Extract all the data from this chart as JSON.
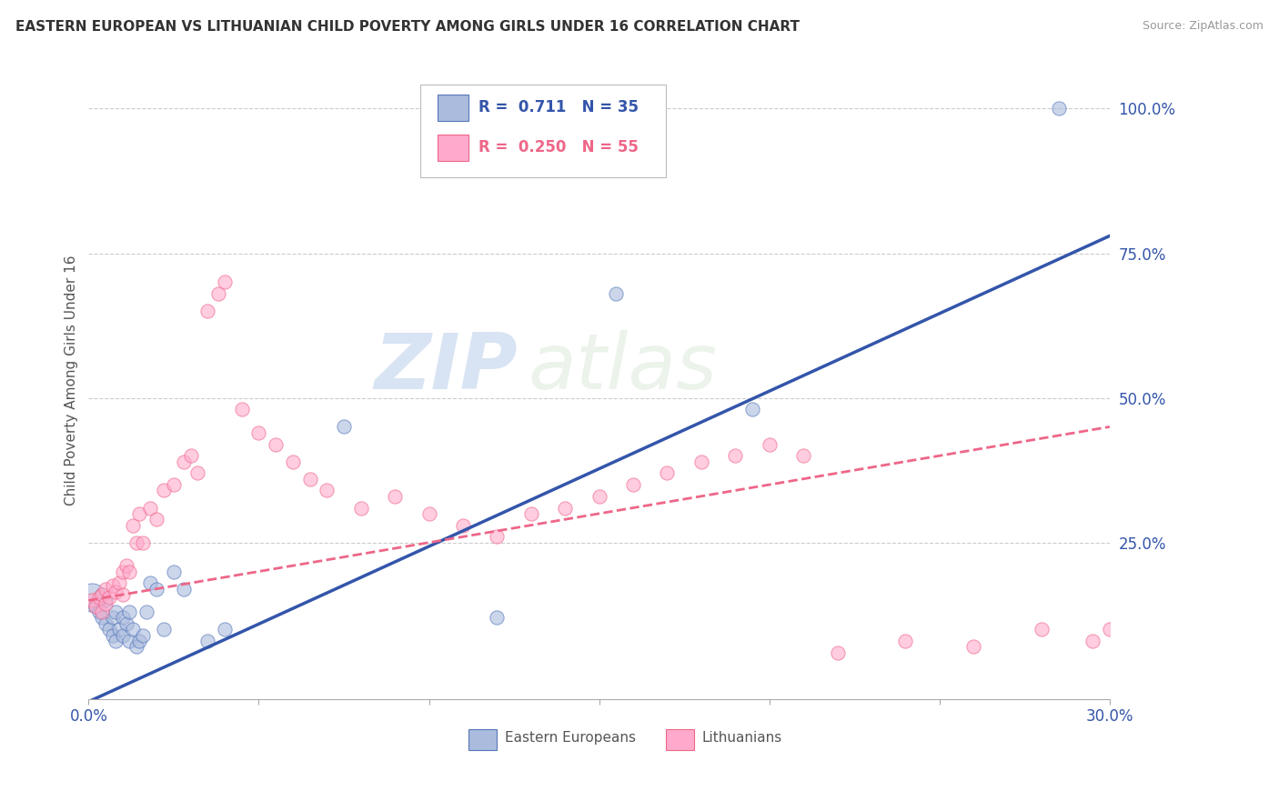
{
  "title": "EASTERN EUROPEAN VS LITHUANIAN CHILD POVERTY AMONG GIRLS UNDER 16 CORRELATION CHART",
  "source": "Source: ZipAtlas.com",
  "ylabel": "Child Poverty Among Girls Under 16",
  "yticks": [
    0.0,
    0.25,
    0.5,
    0.75,
    1.0
  ],
  "ytick_labels": [
    "",
    "25.0%",
    "50.0%",
    "75.0%",
    "100.0%"
  ],
  "xlim": [
    0.0,
    0.3
  ],
  "ylim": [
    -0.02,
    1.08
  ],
  "blue_color": "#aabbdd",
  "blue_edge_color": "#5577bb",
  "pink_color": "#ffaacc",
  "pink_edge_color": "#ee6688",
  "blue_line_color": "#3355aa",
  "pink_line_color": "#ee6688",
  "background_color": "#FFFFFF",
  "watermark_zip": "ZIP",
  "watermark_atlas": "atlas",
  "eastern_europeans": {
    "x": [
      0.001,
      0.002,
      0.003,
      0.004,
      0.004,
      0.005,
      0.005,
      0.006,
      0.007,
      0.007,
      0.008,
      0.008,
      0.009,
      0.01,
      0.01,
      0.011,
      0.012,
      0.012,
      0.013,
      0.014,
      0.015,
      0.016,
      0.017,
      0.018,
      0.02,
      0.022,
      0.025,
      0.028,
      0.035,
      0.04,
      0.075,
      0.12,
      0.155,
      0.195,
      0.285
    ],
    "y": [
      0.155,
      0.14,
      0.13,
      0.16,
      0.12,
      0.15,
      0.11,
      0.1,
      0.09,
      0.12,
      0.13,
      0.08,
      0.1,
      0.12,
      0.09,
      0.11,
      0.13,
      0.08,
      0.1,
      0.07,
      0.08,
      0.09,
      0.13,
      0.18,
      0.17,
      0.1,
      0.2,
      0.17,
      0.08,
      0.1,
      0.45,
      0.12,
      0.68,
      0.48,
      1.0
    ],
    "big_point": [
      true,
      false,
      false,
      false,
      false,
      false,
      false,
      false,
      false,
      false,
      false,
      false,
      false,
      false,
      false,
      false,
      false,
      false,
      false,
      false,
      false,
      false,
      false,
      false,
      false,
      false,
      false,
      false,
      false,
      false,
      false,
      false,
      false,
      false,
      false
    ]
  },
  "lithuanians": {
    "x": [
      0.001,
      0.002,
      0.003,
      0.004,
      0.004,
      0.005,
      0.005,
      0.006,
      0.007,
      0.008,
      0.009,
      0.01,
      0.01,
      0.011,
      0.012,
      0.013,
      0.014,
      0.015,
      0.016,
      0.018,
      0.02,
      0.022,
      0.025,
      0.028,
      0.03,
      0.032,
      0.035,
      0.038,
      0.04,
      0.045,
      0.05,
      0.055,
      0.06,
      0.065,
      0.07,
      0.08,
      0.09,
      0.1,
      0.11,
      0.12,
      0.13,
      0.14,
      0.15,
      0.16,
      0.17,
      0.18,
      0.19,
      0.2,
      0.21,
      0.22,
      0.24,
      0.26,
      0.28,
      0.295,
      0.3
    ],
    "x_extra": []
  },
  "lt_y": [
    0.15,
    0.14,
    0.155,
    0.13,
    0.16,
    0.145,
    0.17,
    0.155,
    0.175,
    0.165,
    0.18,
    0.16,
    0.2,
    0.21,
    0.2,
    0.28,
    0.25,
    0.3,
    0.25,
    0.31,
    0.29,
    0.34,
    0.35,
    0.39,
    0.4,
    0.37,
    0.65,
    0.68,
    0.7,
    0.48,
    0.44,
    0.42,
    0.39,
    0.36,
    0.34,
    0.31,
    0.33,
    0.3,
    0.28,
    0.26,
    0.3,
    0.31,
    0.33,
    0.35,
    0.37,
    0.39,
    0.4,
    0.42,
    0.4,
    0.06,
    0.08,
    0.07,
    0.1,
    0.08,
    0.1
  ],
  "ee_line": {
    "x0": 0.0,
    "y0": -0.025,
    "x1": 0.3,
    "y1": 0.78
  },
  "lt_line": {
    "x0": 0.0,
    "y0": 0.15,
    "x1": 0.3,
    "y1": 0.45
  }
}
